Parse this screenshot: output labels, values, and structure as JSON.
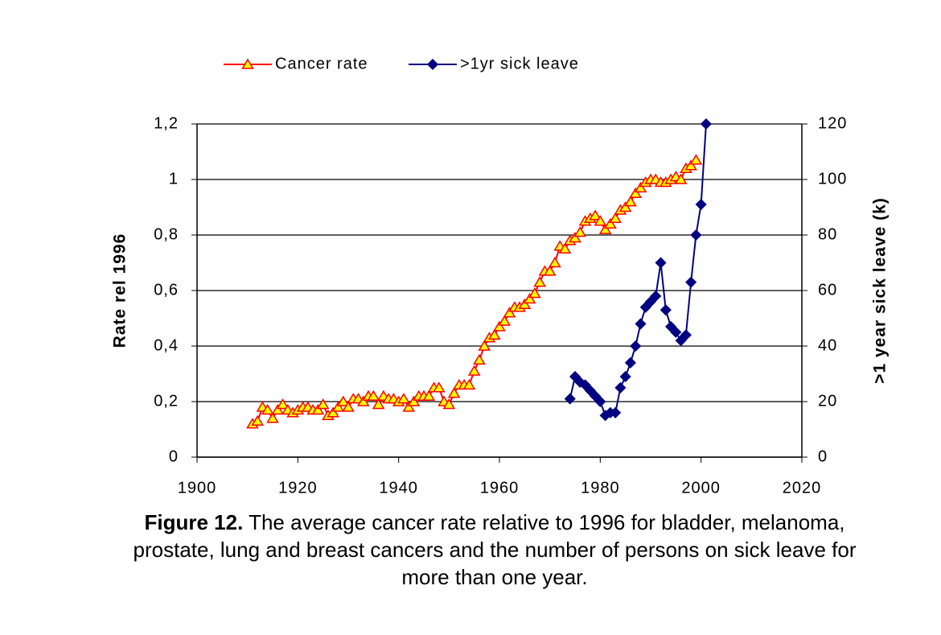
{
  "chart_data": {
    "type": "line",
    "caption_label": "Figure 12.",
    "caption": "The average cancer rate relative to 1996 for bladder, melanoma, prostate, lung and breast cancers and the number of persons on sick leave for more than one year.",
    "ylabel": "Rate rel 1996",
    "y2label": ">1 year sick leave (k)",
    "xlim": [
      1900,
      2020
    ],
    "xticks": [
      1900,
      1920,
      1940,
      1960,
      1980,
      2000,
      2020
    ],
    "ylim": [
      0,
      1.2
    ],
    "yticks": [
      0,
      {
        "value": 0.2,
        "label": "0,2"
      },
      {
        "value": 0.4,
        "label": "0,4"
      },
      {
        "value": 0.6,
        "label": "0,6"
      },
      {
        "value": 0.8,
        "label": "0,8"
      },
      1,
      {
        "value": 1.2,
        "label": "1,2"
      }
    ],
    "y2lim": [
      0,
      120
    ],
    "y2ticks": [
      0,
      20,
      40,
      60,
      80,
      100,
      120
    ],
    "grid": true,
    "legend": "top",
    "series": [
      {
        "name": "Cancer rate",
        "color": "#ff0000",
        "marker_fill": "#ffff00",
        "marker": "triangle",
        "x": [
          1911,
          1912,
          1913,
          1914,
          1915,
          1916,
          1917,
          1918,
          1919,
          1920,
          1921,
          1922,
          1923,
          1924,
          1925,
          1926,
          1927,
          1928,
          1929,
          1930,
          1931,
          1932,
          1933,
          1934,
          1935,
          1936,
          1937,
          1938,
          1939,
          1940,
          1941,
          1942,
          1943,
          1944,
          1945,
          1946,
          1947,
          1948,
          1949,
          1950,
          1951,
          1952,
          1953,
          1954,
          1955,
          1956,
          1957,
          1958,
          1959,
          1960,
          1961,
          1962,
          1963,
          1964,
          1965,
          1966,
          1967,
          1968,
          1969,
          1970,
          1971,
          1972,
          1973,
          1974,
          1975,
          1976,
          1977,
          1978,
          1979,
          1980,
          1981,
          1982,
          1983,
          1984,
          1985,
          1986,
          1987,
          1988,
          1989,
          1990,
          1991,
          1992,
          1993,
          1994,
          1995,
          1996,
          1997,
          1998,
          1999
        ],
        "values": [
          0.12,
          0.13,
          0.18,
          0.17,
          0.14,
          0.17,
          0.19,
          0.17,
          0.16,
          0.17,
          0.18,
          0.18,
          0.17,
          0.17,
          0.19,
          0.15,
          0.16,
          0.18,
          0.2,
          0.18,
          0.21,
          0.21,
          0.2,
          0.22,
          0.22,
          0.19,
          0.22,
          0.21,
          0.21,
          0.2,
          0.21,
          0.18,
          0.2,
          0.22,
          0.22,
          0.22,
          0.25,
          0.25,
          0.2,
          0.19,
          0.23,
          0.26,
          0.26,
          0.26,
          0.31,
          0.35,
          0.4,
          0.43,
          0.44,
          0.47,
          0.49,
          0.52,
          0.54,
          0.54,
          0.55,
          0.57,
          0.59,
          0.63,
          0.67,
          0.67,
          0.7,
          0.76,
          0.75,
          0.78,
          0.79,
          0.81,
          0.85,
          0.86,
          0.87,
          0.85,
          0.82,
          0.84,
          0.86,
          0.89,
          0.9,
          0.92,
          0.95,
          0.97,
          0.99,
          1.0,
          1.0,
          0.99,
          0.99,
          1.0,
          1.01,
          1.0,
          1.04,
          1.05,
          1.07
        ]
      },
      {
        "name": ">1yr sick leave",
        "color": "#000080",
        "marker_fill": "#000080",
        "marker": "diamond",
        "axis": "y2",
        "x": [
          1974,
          1975,
          1976,
          1977,
          1978,
          1979,
          1980,
          1981,
          1982,
          1983,
          1984,
          1985,
          1986,
          1987,
          1988,
          1989,
          1990,
          1991,
          1992,
          1993,
          1994,
          1995,
          1996,
          1997,
          1998,
          1999,
          2000,
          2001
        ],
        "values": [
          21,
          29,
          27,
          26,
          24,
          22,
          20,
          15,
          16,
          16,
          25,
          29,
          34,
          40,
          48,
          54,
          56,
          58,
          70,
          53,
          47,
          45,
          42,
          44,
          63,
          80,
          91,
          120
        ]
      }
    ]
  }
}
